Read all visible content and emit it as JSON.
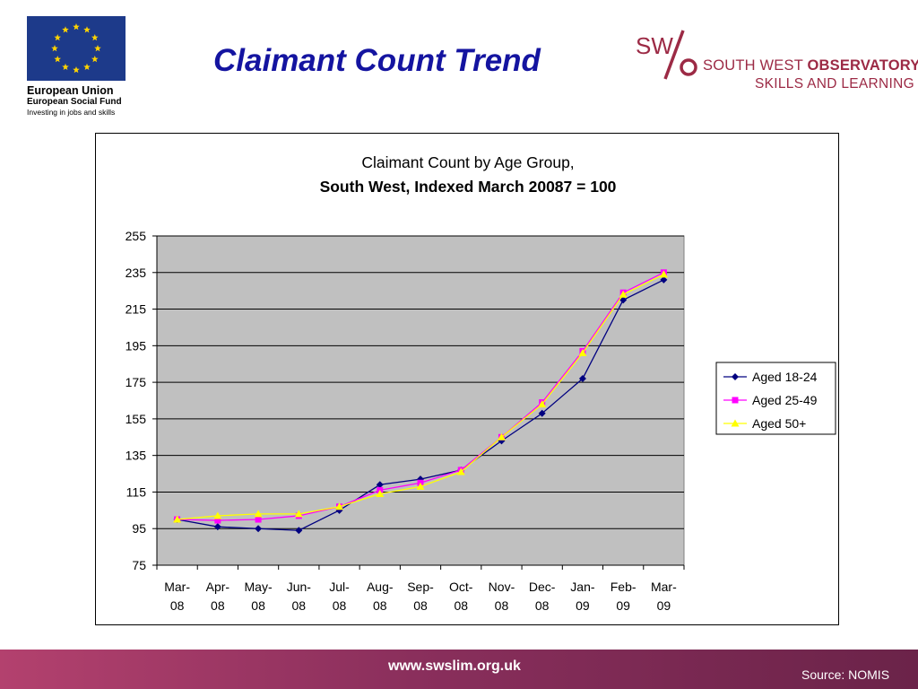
{
  "header": {
    "eu_logo": {
      "name": "European Union",
      "fund": "European Social Fund",
      "tagline": "Investing in jobs and skills",
      "flag_color": "#1d3a8a",
      "star_color": "#ffd400"
    },
    "title": "Claimant Count Trend",
    "swo_logo": {
      "mark_text": "SW",
      "line1_regular": "SOUTH WEST ",
      "line1_bold": "OBSERVATORY",
      "line2": "SKILLS AND LEARNING",
      "color": "#9c2a45"
    }
  },
  "chart_data": {
    "type": "line",
    "title_line1": "Claimant Count by Age Group,",
    "title_line2": "South West, Indexed March 20087 = 100",
    "categories": [
      [
        "Mar-",
        "08"
      ],
      [
        "Apr-",
        "08"
      ],
      [
        "May-",
        "08"
      ],
      [
        "Jun-",
        "08"
      ],
      [
        "Jul-",
        "08"
      ],
      [
        "Aug-",
        "08"
      ],
      [
        "Sep-",
        "08"
      ],
      [
        "Oct-",
        "08"
      ],
      [
        "Nov-",
        "08"
      ],
      [
        "Dec-",
        "08"
      ],
      [
        "Jan-",
        "09"
      ],
      [
        "Feb-",
        "09"
      ],
      [
        "Mar-",
        "09"
      ]
    ],
    "ylim": [
      75,
      255
    ],
    "yticks": [
      75,
      95,
      115,
      135,
      155,
      175,
      195,
      215,
      235,
      255
    ],
    "plot_background": "#c0c0c0",
    "grid": true,
    "legend_position": "right",
    "series": [
      {
        "name": "Aged 18-24",
        "color": "#000080",
        "marker": "diamond",
        "values": [
          100,
          96,
          95,
          94,
          105,
          119,
          122,
          127,
          143,
          158,
          177,
          220,
          231
        ]
      },
      {
        "name": "Aged 25-49",
        "color": "#ff00ff",
        "marker": "square",
        "values": [
          100,
          99.5,
          100,
          102,
          107,
          116,
          120,
          127,
          145,
          164,
          192,
          224,
          235
        ]
      },
      {
        "name": "Aged 50+",
        "color": "#ffff00",
        "marker": "triangle",
        "values": [
          100,
          102,
          103,
          103,
          107,
          114,
          118,
          126,
          145,
          163,
          191,
          223,
          234
        ]
      }
    ]
  },
  "footer": {
    "url": "www.swslim.org.uk",
    "source": "Source: NOMIS"
  }
}
